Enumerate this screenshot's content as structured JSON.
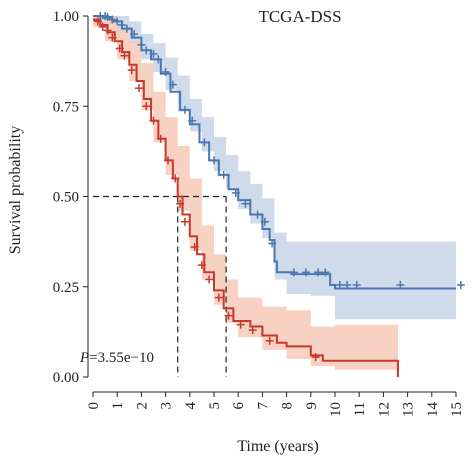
{
  "chart_data": {
    "type": "line",
    "subtype": "kaplan-meier",
    "title": "TCGA-DSS",
    "xlabel": "Time (years)",
    "ylabel": "Survival probability",
    "xlim": [
      0,
      15
    ],
    "ylim": [
      0,
      1
    ],
    "xticks": [
      "0",
      "1",
      "2",
      "3",
      "4",
      "5",
      "6",
      "7",
      "8",
      "9",
      "10",
      "11",
      "12",
      "13",
      "14",
      "15"
    ],
    "yticks": [
      "0.00",
      "0.25",
      "0.50",
      "0.75",
      "1.00"
    ],
    "annotation": {
      "p_label": "P",
      "p_value": "=3.55e−10"
    },
    "grid": false,
    "legend": "none",
    "median_line": {
      "y": 0.5,
      "x_values": [
        3.5,
        5.5
      ]
    },
    "series": [
      {
        "color": "#4a76b0",
        "band_color": "#c3d1e6",
        "steps": [
          [
            0,
            1.0
          ],
          [
            0.4,
            0.995
          ],
          [
            0.8,
            0.985
          ],
          [
            1.2,
            0.965
          ],
          [
            1.6,
            0.94
          ],
          [
            2.0,
            0.905
          ],
          [
            2.4,
            0.88
          ],
          [
            2.8,
            0.84
          ],
          [
            3.2,
            0.79
          ],
          [
            3.6,
            0.74
          ],
          [
            4.0,
            0.7
          ],
          [
            4.4,
            0.65
          ],
          [
            4.8,
            0.6
          ],
          [
            5.2,
            0.56
          ],
          [
            5.6,
            0.52
          ],
          [
            6.0,
            0.49
          ],
          [
            6.5,
            0.45
          ],
          [
            7.0,
            0.41
          ],
          [
            7.3,
            0.38
          ],
          [
            7.5,
            0.32
          ],
          [
            7.6,
            0.29
          ],
          [
            8.2,
            0.285
          ],
          [
            9.0,
            0.285
          ],
          [
            9.8,
            0.255
          ],
          [
            10.0,
            0.245
          ],
          [
            15.0,
            0.245
          ]
        ],
        "lower": [
          [
            0,
            1.0
          ],
          [
            0.5,
            0.98
          ],
          [
            1.0,
            0.955
          ],
          [
            1.5,
            0.925
          ],
          [
            2.0,
            0.88
          ],
          [
            2.5,
            0.845
          ],
          [
            3.0,
            0.795
          ],
          [
            3.5,
            0.735
          ],
          [
            4.0,
            0.68
          ],
          [
            4.5,
            0.625
          ],
          [
            5.0,
            0.57
          ],
          [
            5.5,
            0.52
          ],
          [
            6.0,
            0.465
          ],
          [
            6.5,
            0.425
          ],
          [
            7.0,
            0.385
          ],
          [
            7.5,
            0.27
          ],
          [
            8.0,
            0.23
          ],
          [
            9.0,
            0.225
          ],
          [
            10.0,
            0.16
          ],
          [
            15.0,
            0.16
          ]
        ],
        "upper": [
          [
            0,
            1.0
          ],
          [
            0.5,
            1.0
          ],
          [
            1.0,
            1.0
          ],
          [
            1.5,
            0.985
          ],
          [
            2.0,
            0.95
          ],
          [
            2.5,
            0.925
          ],
          [
            3.0,
            0.885
          ],
          [
            3.5,
            0.835
          ],
          [
            4.0,
            0.77
          ],
          [
            4.5,
            0.72
          ],
          [
            5.0,
            0.665
          ],
          [
            5.5,
            0.615
          ],
          [
            6.0,
            0.57
          ],
          [
            6.5,
            0.535
          ],
          [
            7.0,
            0.495
          ],
          [
            7.5,
            0.4
          ],
          [
            8.0,
            0.375
          ],
          [
            9.0,
            0.375
          ],
          [
            10.0,
            0.375
          ],
          [
            15.0,
            0.375
          ]
        ],
        "censored": [
          [
            0.3,
            1.0
          ],
          [
            0.5,
            1.0
          ],
          [
            0.6,
            0.998
          ],
          [
            0.8,
            0.99
          ],
          [
            1.0,
            0.985
          ],
          [
            1.2,
            0.975
          ],
          [
            1.4,
            0.965
          ],
          [
            1.7,
            0.95
          ],
          [
            2.0,
            0.92
          ],
          [
            2.2,
            0.905
          ],
          [
            2.5,
            0.895
          ],
          [
            2.7,
            0.88
          ],
          [
            3.0,
            0.845
          ],
          [
            3.3,
            0.81
          ],
          [
            3.8,
            0.74
          ],
          [
            4.1,
            0.71
          ],
          [
            4.6,
            0.65
          ],
          [
            5.0,
            0.6
          ],
          [
            5.4,
            0.56
          ],
          [
            5.9,
            0.51
          ],
          [
            6.3,
            0.48
          ],
          [
            6.8,
            0.45
          ],
          [
            7.1,
            0.43
          ],
          [
            7.4,
            0.37
          ],
          [
            8.3,
            0.29
          ],
          [
            8.8,
            0.29
          ],
          [
            9.3,
            0.29
          ],
          [
            9.6,
            0.29
          ],
          [
            10.2,
            0.255
          ],
          [
            10.5,
            0.255
          ],
          [
            10.9,
            0.255
          ],
          [
            12.7,
            0.255
          ],
          [
            15.2,
            0.255
          ]
        ]
      },
      {
        "color": "#c9372c",
        "band_color": "#f5c6b3",
        "steps": [
          [
            0,
            0.99
          ],
          [
            0.3,
            0.975
          ],
          [
            0.6,
            0.955
          ],
          [
            0.9,
            0.93
          ],
          [
            1.2,
            0.9
          ],
          [
            1.5,
            0.865
          ],
          [
            1.8,
            0.82
          ],
          [
            2.1,
            0.77
          ],
          [
            2.4,
            0.71
          ],
          [
            2.7,
            0.66
          ],
          [
            3.0,
            0.6
          ],
          [
            3.3,
            0.55
          ],
          [
            3.5,
            0.5
          ],
          [
            3.7,
            0.45
          ],
          [
            4.0,
            0.39
          ],
          [
            4.3,
            0.34
          ],
          [
            4.6,
            0.29
          ],
          [
            5.0,
            0.24
          ],
          [
            5.4,
            0.19
          ],
          [
            5.8,
            0.155
          ],
          [
            6.5,
            0.14
          ],
          [
            7.0,
            0.115
          ],
          [
            7.6,
            0.095
          ],
          [
            8.0,
            0.085
          ],
          [
            9.0,
            0.06
          ],
          [
            9.5,
            0.045
          ],
          [
            12.6,
            0.045
          ],
          [
            12.6,
            0.0
          ]
        ],
        "lower": [
          [
            0,
            0.97
          ],
          [
            0.5,
            0.93
          ],
          [
            1.0,
            0.88
          ],
          [
            1.5,
            0.82
          ],
          [
            2.0,
            0.74
          ],
          [
            2.5,
            0.65
          ],
          [
            3.0,
            0.56
          ],
          [
            3.5,
            0.46
          ],
          [
            4.0,
            0.35
          ],
          [
            4.5,
            0.27
          ],
          [
            5.0,
            0.2
          ],
          [
            5.5,
            0.15
          ],
          [
            6.0,
            0.11
          ],
          [
            7.0,
            0.075
          ],
          [
            8.0,
            0.05
          ],
          [
            9.0,
            0.03
          ],
          [
            10.0,
            0.02
          ],
          [
            12.6,
            0.0
          ]
        ],
        "upper": [
          [
            0,
            1.0
          ],
          [
            0.5,
            1.0
          ],
          [
            1.0,
            0.97
          ],
          [
            1.5,
            0.93
          ],
          [
            2.0,
            0.87
          ],
          [
            2.5,
            0.79
          ],
          [
            3.0,
            0.72
          ],
          [
            3.5,
            0.64
          ],
          [
            4.0,
            0.55
          ],
          [
            4.5,
            0.42
          ],
          [
            5.0,
            0.34
          ],
          [
            5.5,
            0.27
          ],
          [
            6.0,
            0.22
          ],
          [
            7.0,
            0.195
          ],
          [
            8.0,
            0.185
          ],
          [
            9.0,
            0.14
          ],
          [
            10.0,
            0.145
          ],
          [
            12.6,
            0.145
          ]
        ],
        "censored": [
          [
            0.2,
            0.985
          ],
          [
            0.4,
            0.97
          ],
          [
            0.6,
            0.96
          ],
          [
            0.8,
            0.94
          ],
          [
            1.1,
            0.91
          ],
          [
            1.3,
            0.89
          ],
          [
            1.6,
            0.85
          ],
          [
            1.9,
            0.8
          ],
          [
            2.2,
            0.75
          ],
          [
            2.5,
            0.71
          ],
          [
            2.8,
            0.66
          ],
          [
            3.1,
            0.6
          ],
          [
            3.4,
            0.55
          ],
          [
            3.6,
            0.48
          ],
          [
            3.8,
            0.43
          ],
          [
            4.2,
            0.36
          ],
          [
            4.5,
            0.31
          ],
          [
            4.8,
            0.27
          ],
          [
            5.2,
            0.22
          ],
          [
            5.6,
            0.17
          ],
          [
            6.1,
            0.145
          ],
          [
            6.6,
            0.13
          ],
          [
            7.3,
            0.1
          ],
          [
            9.2,
            0.055
          ]
        ]
      }
    ]
  }
}
